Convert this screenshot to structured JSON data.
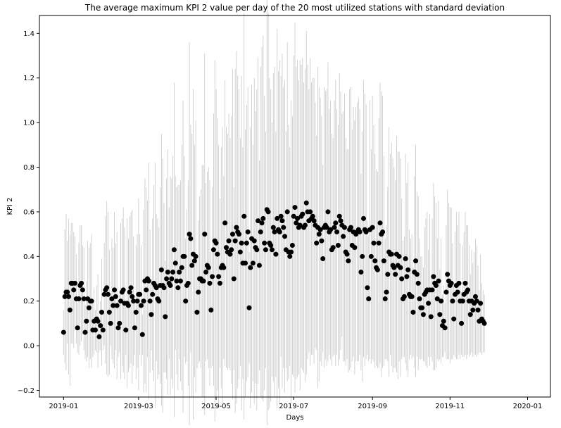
{
  "chart_data": {
    "type": "scatter",
    "title": "The average maximum KPI 2 value per day of the 20 most utilized stations with standard deviation",
    "xlabel": "Days",
    "ylabel": "KPI 2",
    "xlim": [
      "2018-12-13",
      "2020-01-19"
    ],
    "ylim": [
      -0.23,
      1.48
    ],
    "x_ticks": [
      "2019-01",
      "2019-03",
      "2019-05",
      "2019-07",
      "2019-09",
      "2019-11",
      "2020-01"
    ],
    "y_ticks": [
      "−0.2",
      "0.0",
      "0.2",
      "0.4",
      "0.6",
      "0.8",
      "1.0",
      "1.2",
      "1.4"
    ],
    "grid": false,
    "marker_color": "#000000",
    "errorbar_color": "#c8c8c8",
    "series": [
      {
        "x_start": "2019-01-01",
        "x_step_days": 1,
        "y": [
          0.06,
          0.22,
          0.24,
          0.24,
          0.22,
          0.16,
          0.28,
          0.28,
          0.25,
          0.28,
          0.21,
          0.08,
          0.21,
          0.27,
          0.28,
          0.25,
          0.21,
          0.06,
          0.11,
          0.21,
          0.17,
          0.2,
          0.2,
          0.07,
          0.11,
          0.07,
          0.12,
          0.11,
          0.04,
          0.09,
          0.15,
          0.07,
          0.23,
          0.25,
          0.26,
          0.23,
          0.15,
          0.1,
          0.21,
          0.18,
          0.25,
          0.22,
          0.18,
          0.08,
          0.1,
          0.2,
          0.24,
          0.25,
          0.19,
          0.07,
          0.19,
          0.18,
          0.24,
          0.26,
          0.22,
          0.2,
          0.08,
          0.15,
          0.2,
          0.23,
          0.23,
          0.18,
          0.05,
          0.2,
          0.29,
          0.25,
          0.3,
          0.29,
          0.2,
          0.14,
          0.23,
          0.28,
          0.27,
          0.26,
          0.21,
          0.2,
          0.27,
          0.34,
          0.27,
          0.26,
          0.13,
          0.3,
          0.33,
          0.28,
          0.27,
          0.3,
          0.33,
          0.43,
          0.37,
          0.29,
          0.26,
          0.33,
          0.29,
          0.35,
          0.4,
          0.4,
          0.2,
          0.27,
          0.28,
          0.5,
          0.48,
          0.36,
          0.41,
          0.38,
          0.4,
          0.15,
          0.24,
          0.3,
          0.3,
          0.29,
          0.29,
          0.5,
          0.33,
          0.36,
          0.35,
          0.28,
          0.16,
          0.31,
          0.43,
          0.47,
          0.46,
          0.41,
          0.31,
          0.28,
          0.35,
          0.36,
          0.35,
          0.55,
          0.44,
          0.42,
          0.47,
          0.41,
          0.43,
          0.5,
          0.3,
          0.47,
          0.53,
          0.51,
          0.5,
          0.42,
          0.46,
          0.37,
          0.58,
          0.37,
          0.46,
          0.51,
          0.17,
          0.35,
          0.48,
          0.37,
          0.47,
          0.44,
          0.43,
          0.56,
          0.36,
          0.51,
          0.55,
          0.57,
          0.46,
          0.43,
          0.61,
          0.6,
          0.46,
          0.45,
          0.43,
          0.53,
          0.51,
          0.41,
          0.57,
          0.52,
          0.51,
          0.58,
          0.56,
          0.53,
          0.49,
          0.43,
          0.6,
          0.42,
          0.4,
          0.42,
          0.45,
          0.58,
          0.62,
          0.55,
          0.57,
          0.53,
          0.54,
          0.58,
          0.59,
          0.53,
          0.54,
          0.64,
          0.6,
          0.56,
          0.6,
          0.57,
          0.58,
          0.56,
          0.54,
          0.46,
          0.53,
          0.5,
          0.52,
          0.47,
          0.39,
          0.53,
          0.54,
          0.53,
          0.6,
          0.51,
          0.52,
          0.43,
          0.44,
          0.53,
          0.55,
          0.51,
          0.45,
          0.58,
          0.56,
          0.54,
          0.49,
          0.53,
          0.42,
          0.41,
          0.38,
          0.52,
          0.53,
          0.45,
          0.51,
          0.44,
          0.5,
          0.51,
          0.52,
          0.51,
          0.33,
          0.4,
          0.57,
          0.52,
          0.51,
          0.26,
          0.21,
          0.52,
          0.4,
          0.53,
          0.46,
          0.38,
          0.35,
          0.34,
          0.46,
          0.55,
          0.5,
          0.51,
          0.38,
          0.21,
          0.24,
          0.32,
          0.42,
          0.41,
          0.41,
          0.36,
          0.35,
          0.32,
          0.41,
          0.36,
          0.4,
          0.35,
          0.3,
          0.21,
          0.22,
          0.39,
          0.31,
          0.34,
          0.23,
          0.22,
          0.22,
          0.15,
          0.33,
          0.38,
          0.32,
          0.28,
          0.21,
          0.17,
          0.17,
          0.14,
          0.23,
          0.24,
          0.25,
          0.19,
          0.25,
          0.13,
          0.25,
          0.31,
          0.28,
          0.27,
          0.21,
          0.29,
          0.14,
          0.2,
          0.09,
          0.11,
          0.08,
          0.24,
          0.32,
          0.29,
          0.27,
          0.28,
          0.2,
          0.12,
          0.23,
          0.27,
          0.24,
          0.28,
          0.2,
          0.1,
          0.2,
          0.23,
          0.28,
          0.24,
          0.25,
          0.2,
          0.14,
          0.2,
          0.16,
          0.19,
          0.22,
          0.2,
          0.16,
          0.11,
          0.19,
          0.12,
          0.11,
          0.1
        ],
        "std": [
          0.1,
          0.3,
          0.35,
          0.23,
          0.35,
          0.34,
          0.27,
          0.27,
          0.26,
          0.21,
          0.2,
          0.11,
          0.25,
          0.27,
          0.26,
          0.2,
          0.23,
          0.12,
          0.18,
          0.26,
          0.27,
          0.26,
          0.3,
          0.12,
          0.15,
          0.09,
          0.15,
          0.21,
          0.07,
          0.11,
          0.24,
          0.09,
          0.23,
          0.33,
          0.39,
          0.37,
          0.28,
          0.1,
          0.27,
          0.26,
          0.35,
          0.24,
          0.33,
          0.13,
          0.13,
          0.35,
          0.33,
          0.37,
          0.34,
          0.11,
          0.38,
          0.3,
          0.34,
          0.34,
          0.39,
          0.29,
          0.12,
          0.3,
          0.3,
          0.43,
          0.27,
          0.27,
          0.09,
          0.41,
          0.46,
          0.46,
          0.35,
          0.53,
          0.32,
          0.16,
          0.34,
          0.44,
          0.55,
          0.33,
          0.36,
          0.33,
          0.44,
          0.61,
          0.57,
          0.38,
          0.25,
          0.45,
          0.55,
          0.34,
          0.49,
          0.45,
          0.52,
          0.75,
          0.39,
          0.42,
          0.46,
          0.39,
          0.45,
          0.55,
          0.7,
          0.45,
          0.28,
          0.34,
          0.46,
          0.86,
          0.51,
          0.59,
          0.74,
          0.52,
          0.61,
          0.25,
          0.32,
          0.37,
          0.4,
          0.52,
          0.52,
          0.81,
          0.4,
          0.42,
          0.45,
          0.46,
          0.26,
          0.4,
          0.61,
          0.81,
          0.69,
          0.61,
          0.59,
          0.38,
          0.54,
          0.62,
          0.41,
          0.64,
          0.54,
          0.53,
          0.57,
          0.52,
          0.6,
          0.74,
          0.41,
          0.77,
          0.79,
          0.7,
          0.65,
          0.51,
          0.75,
          0.52,
          0.91,
          0.6,
          0.62,
          0.65,
          0.25,
          0.63,
          0.69,
          0.53,
          0.73,
          0.61,
          0.72,
          0.73,
          0.47,
          0.74,
          0.79,
          0.82,
          0.66,
          0.53,
          1,
          0.89,
          0.74,
          0.7,
          0.57,
          0.69,
          0.74,
          0.55,
          0.85,
          0.71,
          0.77,
          0.63,
          0.75,
          0.63,
          0.7,
          0.53,
          0.76,
          0.57,
          0.49,
          0.68,
          0.58,
          0.72,
          0.83,
          0.7,
          0.71,
          0.66,
          0.74,
          0.68,
          0.7,
          0.65,
          0.7,
          0.77,
          0.66,
          0.59,
          0.69,
          0.61,
          0.62,
          0.64,
          0.55,
          0.48,
          0.72,
          0.66,
          0.59,
          0.56,
          0.42,
          0.63,
          0.6,
          0.62,
          0.67,
          0.55,
          0.58,
          0.52,
          0.49,
          0.57,
          0.64,
          0.55,
          0.54,
          0.64,
          0.58,
          0.5,
          0.56,
          0.6,
          0.51,
          0.47,
          0.5,
          0.63,
          0.63,
          0.52,
          0.56,
          0.57,
          0.57,
          0.58,
          0.59,
          0.55,
          0.44,
          0.56,
          0.62,
          0.61,
          0.57,
          0.3,
          0.28,
          0.58,
          0.48,
          0.59,
          0.53,
          0.48,
          0.44,
          0.44,
          0.56,
          0.63,
          0.64,
          0.61,
          0.47,
          0.27,
          0.3,
          0.39,
          0.56,
          0.45,
          0.5,
          0.48,
          0.45,
          0.42,
          0.53,
          0.51,
          0.47,
          0.49,
          0.36,
          0.26,
          0.27,
          0.47,
          0.42,
          0.48,
          0.29,
          0.26,
          0.28,
          0.2,
          0.43,
          0.52,
          0.37,
          0.39,
          0.27,
          0.23,
          0.23,
          0.21,
          0.3,
          0.33,
          0.35,
          0.24,
          0.34,
          0.18,
          0.32,
          0.42,
          0.39,
          0.37,
          0.27,
          0.36,
          0.2,
          0.28,
          0.14,
          0.16,
          0.11,
          0.3,
          0.38,
          0.35,
          0.35,
          0.34,
          0.26,
          0.16,
          0.28,
          0.33,
          0.3,
          0.32,
          0.26,
          0.14,
          0.25,
          0.28,
          0.32,
          0.3,
          0.29,
          0.25,
          0.18,
          0.23,
          0.21,
          0.23,
          0.26,
          0.25,
          0.2,
          0.14,
          0.22,
          0.16,
          0.14,
          0.13
        ]
      }
    ]
  }
}
